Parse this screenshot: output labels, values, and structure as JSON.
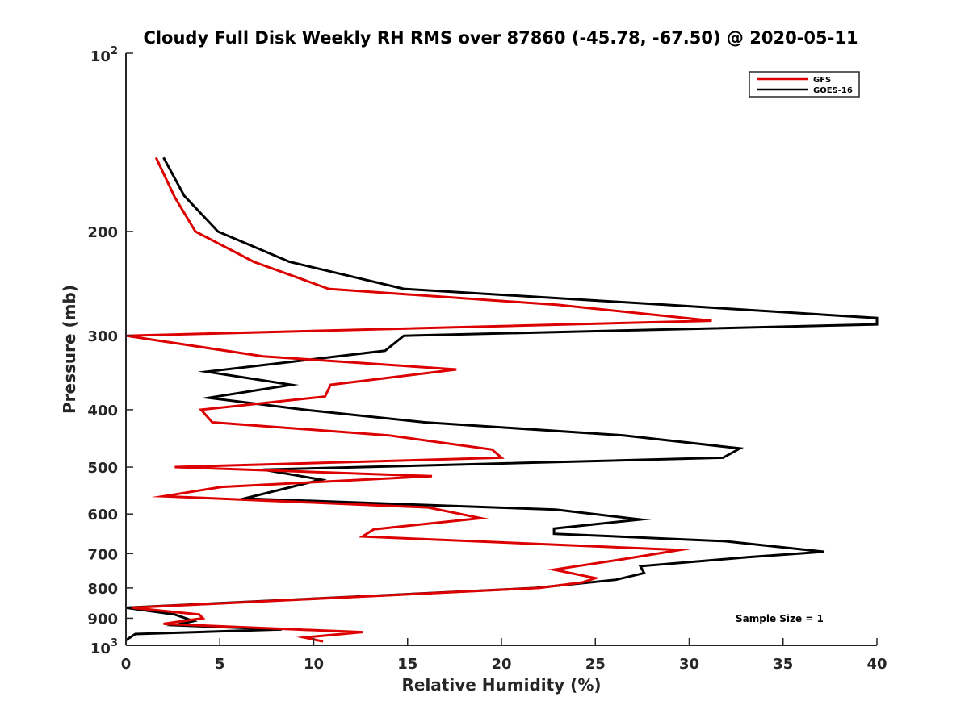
{
  "chart_data": {
    "type": "line",
    "title": "Cloudy Full Disk Weekly RH RMS over 87860 (-45.78, -67.50) @ 2020-05-11",
    "xlabel": "Relative Humidity (%)",
    "ylabel": "Pressure (mb)",
    "xlim": [
      0,
      40
    ],
    "ylim": [
      100,
      1000
    ],
    "y_scale": "log",
    "y_reversed": true,
    "x_ticks": [
      0,
      5,
      10,
      15,
      20,
      25,
      30,
      35,
      40
    ],
    "y_ticks": [
      {
        "value": 100,
        "base": "10",
        "exp": "2"
      },
      {
        "value": 200,
        "label": "200"
      },
      {
        "value": 300,
        "label": "300"
      },
      {
        "value": 400,
        "label": "400"
      },
      {
        "value": 500,
        "label": "500"
      },
      {
        "value": 600,
        "label": "600"
      },
      {
        "value": 700,
        "label": "700"
      },
      {
        "value": 800,
        "label": "800"
      },
      {
        "value": 900,
        "label": "900"
      },
      {
        "value": 1000,
        "base": "10",
        "exp": "3"
      }
    ],
    "grid": false,
    "legend_position": "top-right",
    "annotation": "Sample Size = 1",
    "series": [
      {
        "name": "GFS",
        "color": "#dd0000",
        "points": [
          [
            1.6,
            150
          ],
          [
            2.6,
            175
          ],
          [
            3.7,
            200
          ],
          [
            6.8,
            225
          ],
          [
            10.8,
            250
          ],
          [
            23.0,
            266
          ],
          [
            31.2,
            283
          ],
          [
            0.0,
            300
          ],
          [
            7.3,
            325
          ],
          [
            17.6,
            342
          ],
          [
            10.9,
            363
          ],
          [
            10.6,
            380
          ],
          [
            4.0,
            400
          ],
          [
            4.6,
            420
          ],
          [
            14.0,
            442
          ],
          [
            19.5,
            467
          ],
          [
            20.0,
            482
          ],
          [
            2.6,
            500
          ],
          [
            16.3,
            518
          ],
          [
            5.1,
            540
          ],
          [
            2.0,
            560
          ],
          [
            16.1,
            585
          ],
          [
            18.9,
            610
          ],
          [
            13.2,
            637
          ],
          [
            12.6,
            655
          ],
          [
            29.5,
            690
          ],
          [
            26.5,
            715
          ],
          [
            22.8,
            745
          ],
          [
            25.0,
            770
          ],
          [
            24.3,
            783
          ],
          [
            22.0,
            800
          ],
          [
            0.3,
            864
          ],
          [
            3.9,
            887
          ],
          [
            4.1,
            900
          ],
          [
            2.0,
            920
          ],
          [
            9.0,
            940
          ],
          [
            12.6,
            950
          ],
          [
            9.5,
            970
          ],
          [
            10.5,
            985
          ]
        ]
      },
      {
        "name": "GOES-16",
        "color": "#000000",
        "points": [
          [
            2.0,
            150
          ],
          [
            3.1,
            174
          ],
          [
            4.9,
            200
          ],
          [
            8.7,
            225
          ],
          [
            14.8,
            250
          ],
          [
            28.8,
            266
          ],
          [
            40.0,
            280
          ],
          [
            40.0,
            287
          ],
          [
            14.8,
            300
          ],
          [
            13.8,
            318
          ],
          [
            4.3,
            345
          ],
          [
            8.8,
            363
          ],
          [
            4.4,
            382
          ],
          [
            9.5,
            400
          ],
          [
            15.9,
            420
          ],
          [
            26.5,
            442
          ],
          [
            32.7,
            465
          ],
          [
            31.8,
            482
          ],
          [
            7.3,
            505
          ],
          [
            10.4,
            525
          ],
          [
            6.3,
            565
          ],
          [
            22.9,
            590
          ],
          [
            27.4,
            613
          ],
          [
            22.8,
            635
          ],
          [
            22.8,
            648
          ],
          [
            31.9,
            667
          ],
          [
            37.2,
            695
          ],
          [
            33.1,
            710
          ],
          [
            27.4,
            735
          ],
          [
            27.6,
            755
          ],
          [
            26.1,
            775
          ],
          [
            21.8,
            800
          ],
          [
            0.0,
            864
          ],
          [
            2.6,
            887
          ],
          [
            3.6,
            910
          ],
          [
            2.6,
            925
          ],
          [
            8.3,
            940
          ],
          [
            0.5,
            957
          ],
          [
            0.0,
            980
          ]
        ]
      }
    ]
  }
}
